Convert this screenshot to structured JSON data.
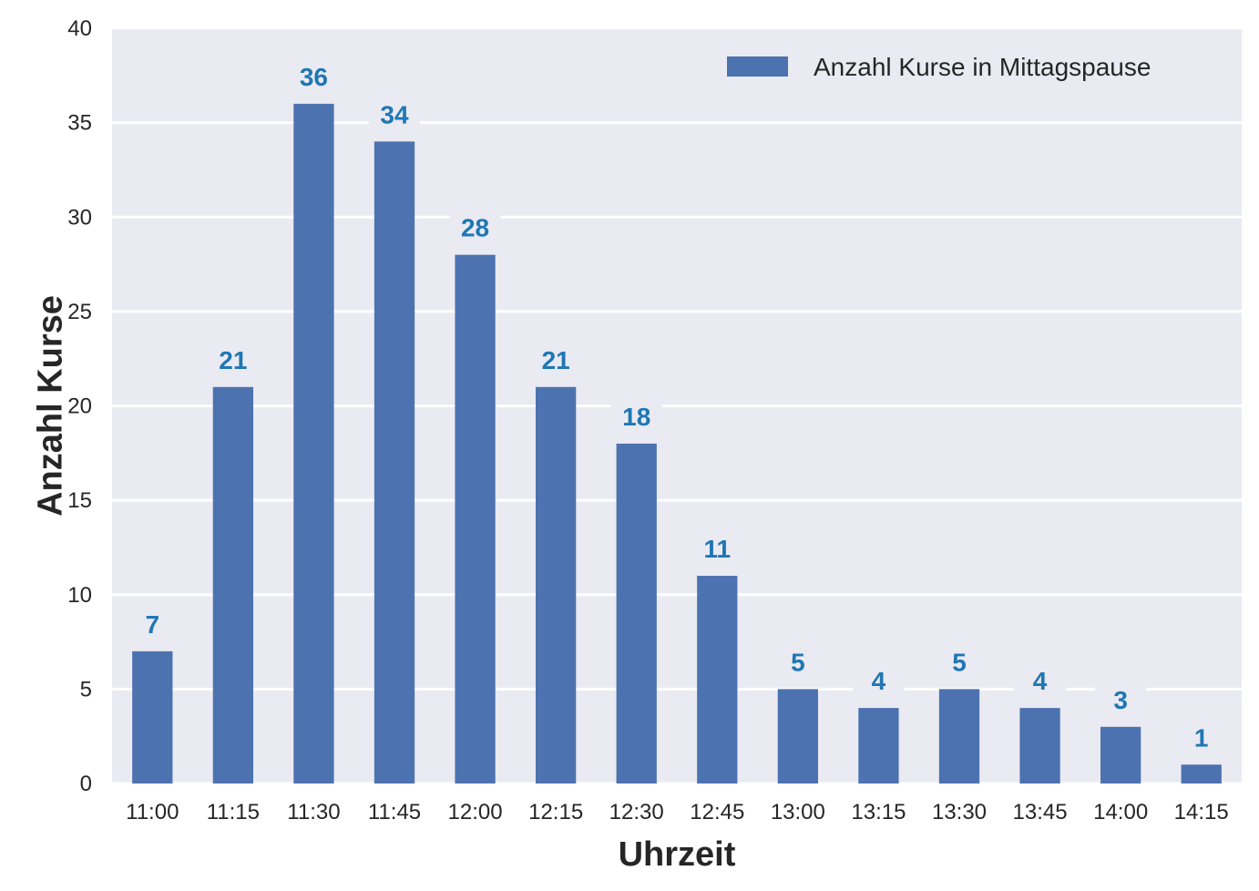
{
  "chart_data": {
    "type": "bar",
    "categories": [
      "11:00",
      "11:15",
      "11:30",
      "11:45",
      "12:00",
      "12:15",
      "12:30",
      "12:45",
      "13:00",
      "13:15",
      "13:30",
      "13:45",
      "14:00",
      "14:15"
    ],
    "series": [
      {
        "name": "Anzahl Kurse in Mittagspause",
        "values": [
          7,
          21,
          36,
          34,
          28,
          21,
          18,
          11,
          5,
          4,
          5,
          4,
          3,
          1
        ]
      }
    ],
    "title": "",
    "xlabel": "Uhrzeit",
    "ylabel": "Anzahl Kurse",
    "ylim": [
      0,
      40
    ],
    "yticks": [
      0,
      5,
      10,
      15,
      20,
      25,
      30,
      35,
      40
    ],
    "grid": "horizontal",
    "legend_position": "top-right",
    "data_labels": true,
    "colors": {
      "bar": "#4c72b0",
      "label": "#1f77b4",
      "background": "#eaeaf2",
      "grid": "#ffffff"
    }
  }
}
